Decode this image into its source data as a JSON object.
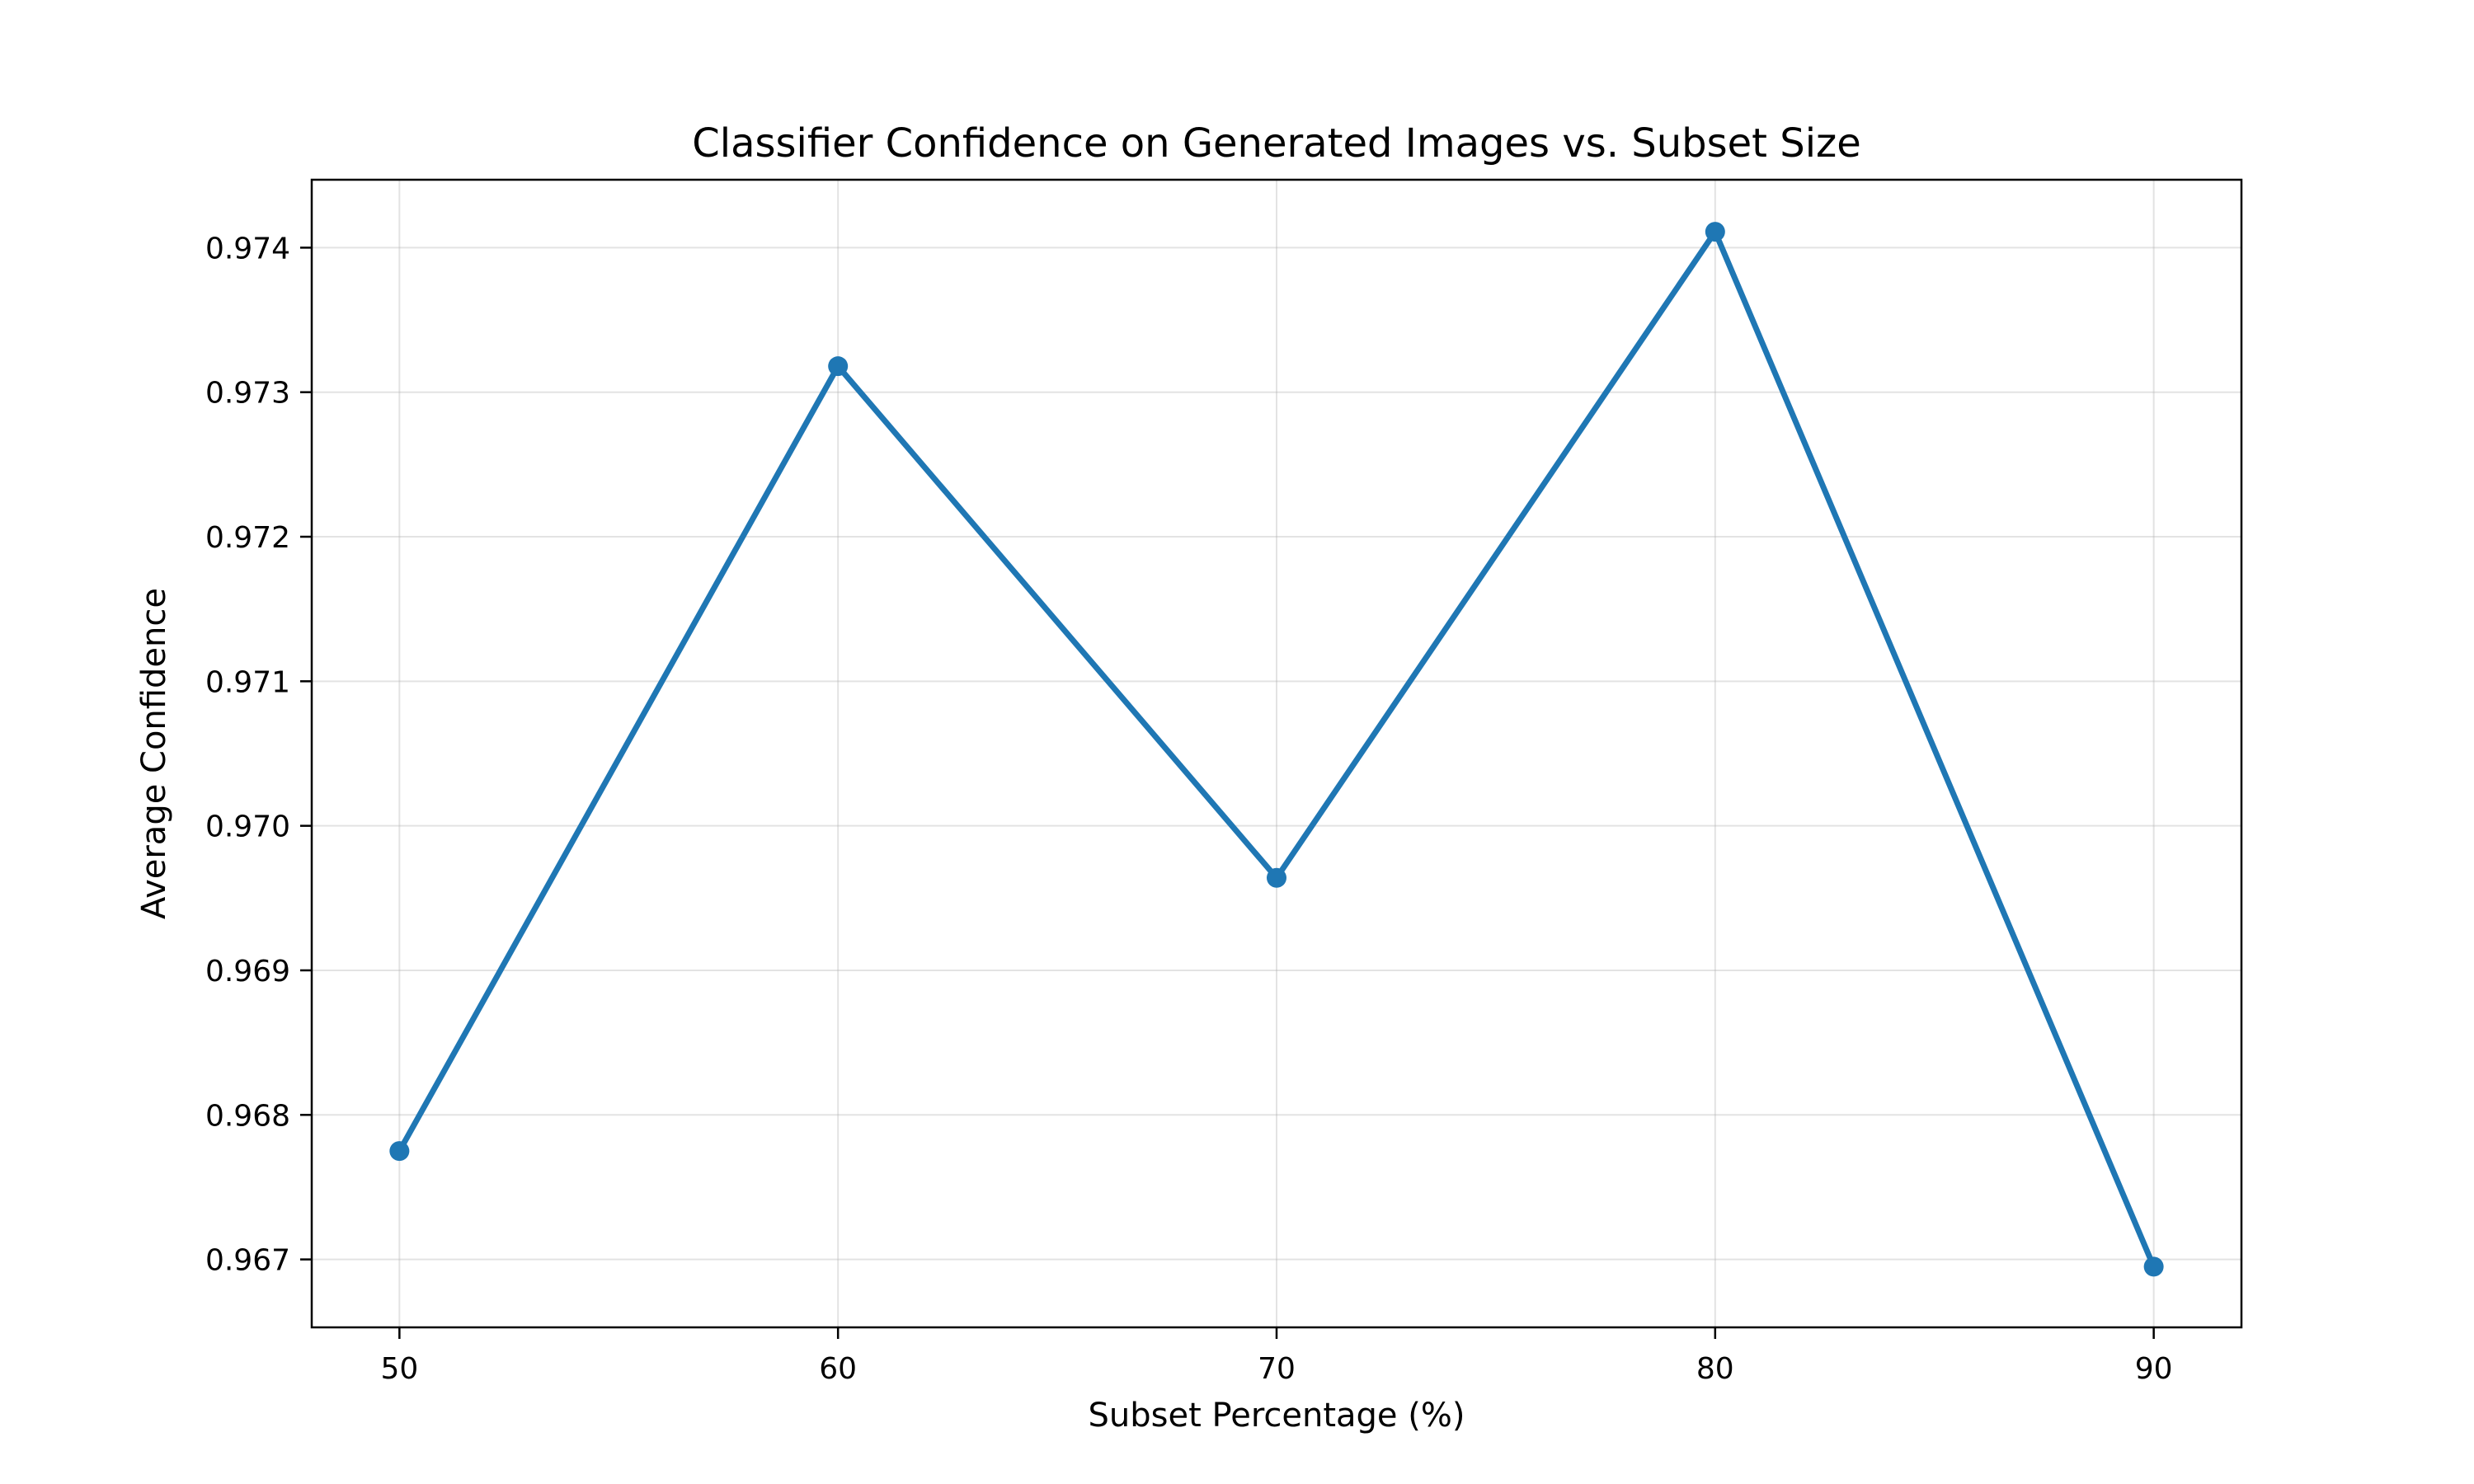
{
  "chart_data": {
    "type": "line",
    "title": "Classifier Confidence on Generated Images vs. Subset Size",
    "xlabel": "Subset Percentage (%)",
    "ylabel": "Average Confidence",
    "x": [
      50,
      60,
      70,
      80,
      90
    ],
    "series": [
      {
        "values": [
          0.96775,
          0.97318,
          0.96964,
          0.97411,
          0.96695
        ],
        "color": "#1f77b4",
        "marker": "circle"
      }
    ],
    "xlim": [
      48,
      92
    ],
    "ylim": [
      0.96653,
      0.97447
    ],
    "xticks": [
      50,
      60,
      70,
      80,
      90
    ],
    "xtick_labels": [
      "50",
      "60",
      "70",
      "80",
      "90"
    ],
    "yticks": [
      0.967,
      0.968,
      0.969,
      0.97,
      0.971,
      0.972,
      0.973,
      0.974
    ],
    "ytick_labels": [
      "0.967",
      "0.968",
      "0.969",
      "0.970",
      "0.971",
      "0.972",
      "0.973",
      "0.974"
    ],
    "grid": true,
    "legend": "none"
  }
}
